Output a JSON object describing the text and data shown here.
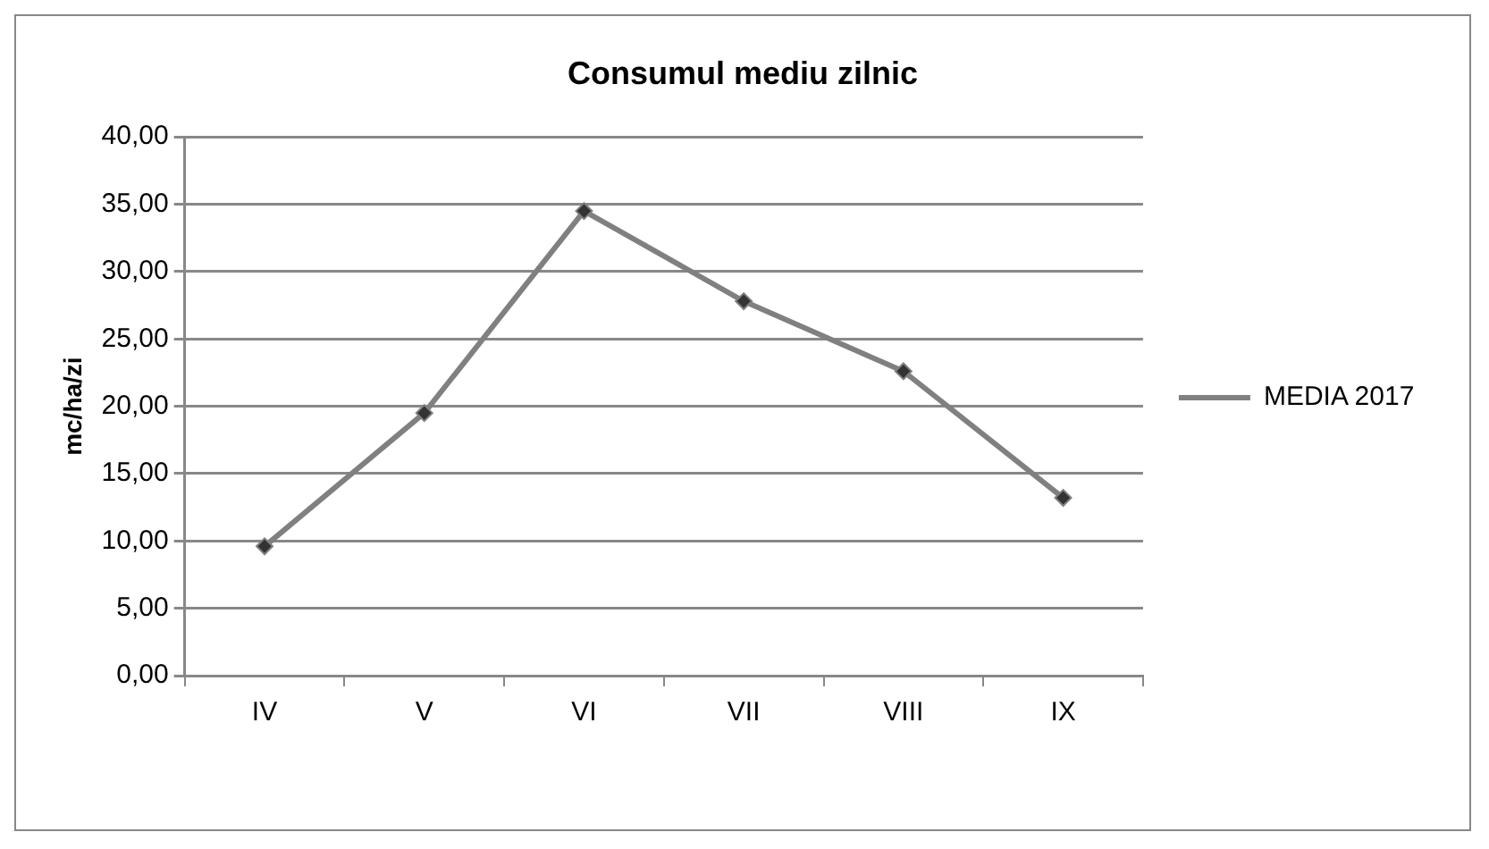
{
  "chart_data": {
    "type": "line",
    "title": "Consumul mediu zilnic",
    "ylabel": "mc/ha/zi",
    "categories": [
      "IV",
      "V",
      "VI",
      "VII",
      "VIII",
      "IX"
    ],
    "series": [
      {
        "name": "MEDIA 2017",
        "color": "#808080",
        "values": [
          9.6,
          19.5,
          34.5,
          27.8,
          22.6,
          13.2
        ]
      }
    ],
    "ylim": [
      0,
      40
    ],
    "yticks": [
      {
        "value": 0,
        "label": "0,00"
      },
      {
        "value": 5,
        "label": "5,00"
      },
      {
        "value": 10,
        "label": "10,00"
      },
      {
        "value": 15,
        "label": "15,00"
      },
      {
        "value": 20,
        "label": "20,00"
      },
      {
        "value": 25,
        "label": "25,00"
      },
      {
        "value": 30,
        "label": "30,00"
      },
      {
        "value": 35,
        "label": "35,00"
      },
      {
        "value": 40,
        "label": "40,00"
      }
    ],
    "grid": "y",
    "legend": "right",
    "marker": "diamond",
    "line_style": "solid"
  }
}
